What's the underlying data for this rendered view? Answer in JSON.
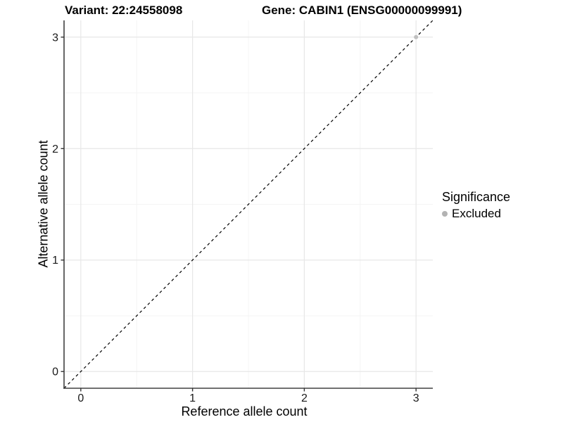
{
  "chart_data": {
    "type": "scatter",
    "title_variant": "Variant: 22:24558098",
    "title_gene": "Gene: CABIN1 (ENSG00000099991)",
    "xlabel": "Reference allele count",
    "ylabel": "Alternative allele count",
    "xlim": [
      -0.15,
      3.15
    ],
    "ylim": [
      -0.15,
      3.15
    ],
    "x_ticks": [
      0,
      1,
      2,
      3
    ],
    "y_ticks": [
      0,
      1,
      2,
      3
    ],
    "x_minor_ticks": [
      0.5,
      1.5,
      2.5
    ],
    "y_minor_ticks": [
      0.5,
      1.5,
      2.5
    ],
    "grid": true,
    "identity_line": {
      "style": "dashed",
      "x1": -0.15,
      "y1": -0.15,
      "x2": 3.15,
      "y2": 3.15,
      "color": "#000000"
    },
    "series": [
      {
        "name": "Excluded",
        "color": "#bfbfbf",
        "points": [
          {
            "x": 3,
            "y": 3
          }
        ]
      }
    ],
    "legend": {
      "position": "right",
      "title": "Significance",
      "items": [
        {
          "label": "Excluded",
          "color": "#b3b3b3"
        }
      ]
    },
    "colors": {
      "grid_major": "#e7e7e7",
      "grid_minor": "#f4f4f4",
      "axis_line": "#404040",
      "tick_mark": "#333333",
      "tick_label": "#1a1a1a"
    }
  }
}
